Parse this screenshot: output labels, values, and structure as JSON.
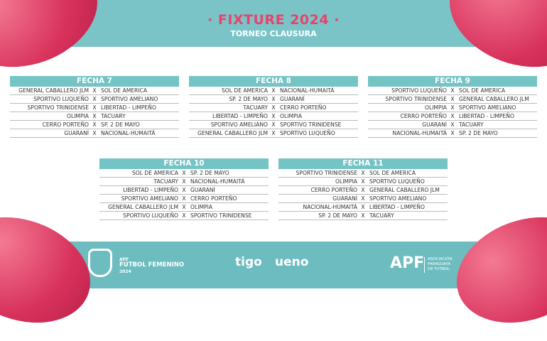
{
  "header": {
    "title": "· FIXTURE 2024 ·",
    "subtitle": "TORNEO CLAUSURA"
  },
  "fechas": [
    {
      "label": "FECHA 7",
      "matches": [
        [
          "GENERAL CABALLERO JLM",
          "X",
          "SOL DE AMERICA"
        ],
        [
          "SPORTIVO LUQUEÑO",
          "X",
          "SPORTIVO AMELIANO"
        ],
        [
          "SPORTIVO TRINIDENSE",
          "X",
          "LIBERTAD - LIMPEÑO"
        ],
        [
          "OLIMPIA",
          "X",
          "TACUARY"
        ],
        [
          "CERRO PORTEÑO",
          "X",
          "SP. 2 DE MAYO"
        ],
        [
          "GUARANÍ",
          "X",
          "NACIONAL-HUMAITÁ"
        ]
      ]
    },
    {
      "label": "FECHA 8",
      "matches": [
        [
          "SOL DE AMERICA",
          "X",
          "NACIONAL-HUMAITÁ"
        ],
        [
          "SP. 2 DE MAYO",
          "X",
          "GUARANÍ"
        ],
        [
          "TACUARY",
          "X",
          "CERRO PORTEÑO"
        ],
        [
          "LIBERTAD - LIMPEÑO",
          "X",
          "OLIMPIA"
        ],
        [
          "SPORTIVO AMELIANO",
          "X",
          "SPORTIVO TRINIDENSE"
        ],
        [
          "GENERAL CABALLERO JLM",
          "X",
          "SPORTIVO LUQUEÑO"
        ]
      ]
    },
    {
      "label": "FECHA 9",
      "matches": [
        [
          "SPORTIVO LUQUEÑO",
          "X",
          "SOL DE AMERICA"
        ],
        [
          "SPORTIVO TRINIDENSE",
          "X",
          "GENERAL CABALLERO JLM"
        ],
        [
          "OLIMPIA",
          "X",
          "SPORTIVO AMELIANO"
        ],
        [
          "CERRO PORTEÑO",
          "X",
          "LIBERTAD - LIMPEÑO"
        ],
        [
          "GUARANÍ",
          "X",
          "TACUARY"
        ],
        [
          "NACIONAL-HUMAITÁ",
          "X",
          "SP. 2 DE MAYO"
        ]
      ]
    },
    {
      "label": "FECHA 10",
      "matches": [
        [
          "SOL DE AMERICA",
          "X",
          "SP. 2 DE MAYO"
        ],
        [
          "TACUARY",
          "X",
          "NACIONAL-HUMAITÁ"
        ],
        [
          "LIBERTAD - LIMPEÑO",
          "X",
          "GUARANÍ"
        ],
        [
          "SPORTIVO AMELIANO",
          "X",
          "CERRO PORTEÑO"
        ],
        [
          "GENERAL CABALLERO JLM",
          "X",
          "OLIMPIA"
        ],
        [
          "SPORTIVO LUQUEÑO",
          "X",
          "SPORTIVO TRINIDENSE"
        ]
      ]
    },
    {
      "label": "FECHA 11",
      "matches": [
        [
          "SPORTIVO TRINIDENSE",
          "X",
          "SOL DE AMERICA"
        ],
        [
          "OLIMPIA",
          "X",
          "SPORTIVO LUQUEÑO"
        ],
        [
          "CERRO PORTEÑO",
          "X",
          "GENERAL CABALLERO JLM"
        ],
        [
          "GUARANÍ",
          "X",
          "SPORTIVO AMELIANO"
        ],
        [
          "NACIONAL-HUMAITÁ",
          "X",
          "LIBERTAD - LIMPEÑO"
        ],
        [
          "SP. 2 DE MAYO",
          "X",
          "TACUARY"
        ]
      ]
    }
  ],
  "footer": {
    "apf_small": "APF",
    "futbol_femenino": "FÚTBOL FEMENINO",
    "year": "2024",
    "tigo": "tigo",
    "ueno": "ueno",
    "apf": "APF",
    "asociacion": [
      "ASOCIACIÓN",
      "PARAGUAYA",
      "DE FUTBOL"
    ]
  },
  "colors": {
    "teal": "#74c3c5",
    "pink": "#e8436b"
  }
}
